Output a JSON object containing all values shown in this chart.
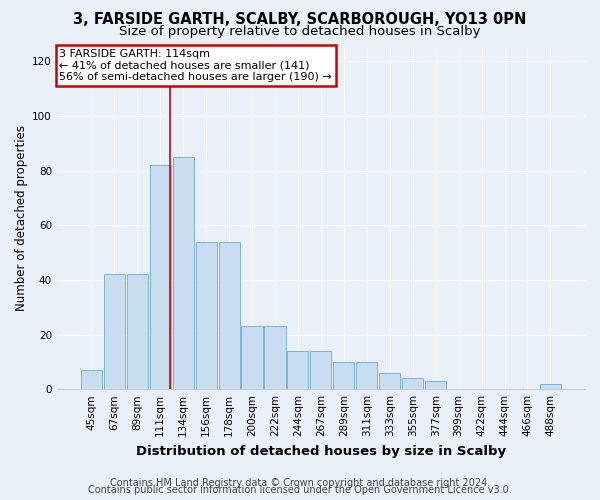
{
  "title": "3, FARSIDE GARTH, SCALBY, SCARBOROUGH, YO13 0PN",
  "subtitle": "Size of property relative to detached houses in Scalby",
  "xlabel": "Distribution of detached houses by size in Scalby",
  "ylabel": "Number of detached properties",
  "categories": [
    "45sqm",
    "67sqm",
    "89sqm",
    "111sqm",
    "134sqm",
    "156sqm",
    "178sqm",
    "200sqm",
    "222sqm",
    "244sqm",
    "267sqm",
    "289sqm",
    "311sqm",
    "333sqm",
    "355sqm",
    "377sqm",
    "399sqm",
    "422sqm",
    "444sqm",
    "466sqm",
    "488sqm"
  ],
  "values": [
    7,
    42,
    42,
    82,
    85,
    54,
    54,
    23,
    23,
    14,
    14,
    10,
    10,
    6,
    4,
    3,
    0,
    0,
    0,
    0,
    2
  ],
  "bar_color": "#c9ddf0",
  "bar_edge_color": "#6aaad4",
  "vline_x": 3.42,
  "vline_color": "#cc0000",
  "annotation_box_text": "3 FARSIDE GARTH: 114sqm\n← 41% of detached houses are smaller (141)\n56% of semi-detached houses are larger (190) →",
  "annotation_box_color": "white",
  "annotation_box_edge_color": "#cc0000",
  "ylim": [
    0,
    125
  ],
  "yticks": [
    0,
    20,
    40,
    60,
    80,
    100,
    120
  ],
  "footer1": "Contains HM Land Registry data © Crown copyright and database right 2024.",
  "footer2": "Contains public sector information licensed under the Open Government Licence v3.0.",
  "bg_color": "#eaf0f8",
  "plot_bg_color": "#eaf0f8",
  "grid_color": "#ffffff",
  "title_fontsize": 10.5,
  "subtitle_fontsize": 9.5,
  "xlabel_fontsize": 9.5,
  "ylabel_fontsize": 8.5,
  "tick_fontsize": 7.5,
  "footer_fontsize": 7.0,
  "ann_fontsize": 8.0
}
